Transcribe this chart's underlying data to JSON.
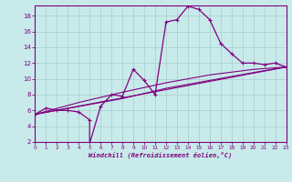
{
  "xlabel": "Windchill (Refroidissement éolien,°C)",
  "bg_color": "#c8eaea",
  "line_color": "#800080",
  "xlim": [
    0,
    23
  ],
  "ylim": [
    2,
    19
  ],
  "xticks": [
    0,
    1,
    2,
    3,
    4,
    5,
    6,
    7,
    8,
    9,
    10,
    11,
    12,
    13,
    14,
    15,
    16,
    17,
    18,
    19,
    20,
    21,
    22,
    23
  ],
  "yticks": [
    2,
    4,
    6,
    8,
    10,
    12,
    14,
    16,
    18
  ],
  "grid_color": "#a8cccc",
  "main_line": [
    [
      0,
      5.5
    ],
    [
      1,
      6.3
    ],
    [
      2,
      6.0
    ],
    [
      3,
      6.0
    ],
    [
      4,
      5.8
    ],
    [
      5,
      4.8
    ],
    [
      5,
      1.8
    ],
    [
      6,
      6.5
    ],
    [
      7,
      8.0
    ],
    [
      8,
      7.8
    ],
    [
      9,
      11.2
    ],
    [
      10,
      9.8
    ],
    [
      11,
      8.0
    ],
    [
      12,
      17.2
    ],
    [
      13,
      17.5
    ],
    [
      14,
      19.2
    ],
    [
      15,
      18.8
    ],
    [
      16,
      17.5
    ],
    [
      17,
      14.5
    ],
    [
      18,
      13.2
    ],
    [
      19,
      12.0
    ],
    [
      20,
      12.0
    ],
    [
      21,
      11.8
    ],
    [
      22,
      12.0
    ],
    [
      23,
      11.5
    ]
  ],
  "ref_line1": [
    [
      0,
      5.5
    ],
    [
      23,
      11.5
    ]
  ],
  "ref_line2": [
    [
      0,
      5.5
    ],
    [
      4,
      6.5
    ],
    [
      8,
      7.5
    ],
    [
      12,
      8.8
    ],
    [
      16,
      9.8
    ],
    [
      20,
      10.8
    ],
    [
      23,
      11.5
    ]
  ],
  "ref_line3": [
    [
      0,
      5.5
    ],
    [
      4,
      7.0
    ],
    [
      8,
      8.3
    ],
    [
      12,
      9.5
    ],
    [
      16,
      10.5
    ],
    [
      20,
      11.2
    ],
    [
      23,
      11.5
    ]
  ]
}
